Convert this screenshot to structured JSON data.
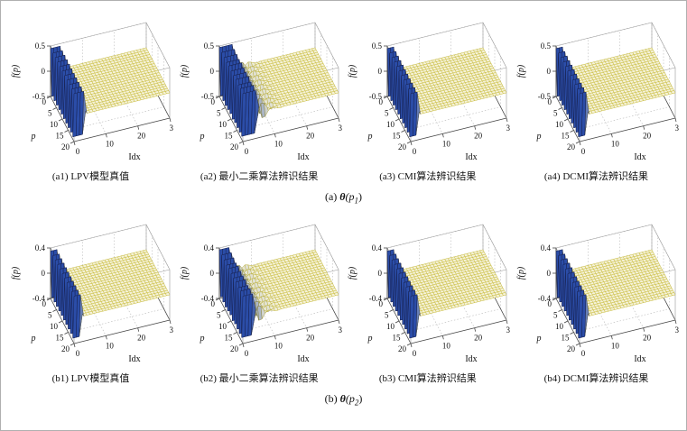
{
  "figure": {
    "background": "#ffffff",
    "row_captions": [
      {
        "prefix": "(a) ",
        "theta": "θ",
        "open": "(p",
        "sub": "1",
        "close": ")"
      },
      {
        "prefix": "(b) ",
        "theta": "θ",
        "open": "(p",
        "sub": "2",
        "close": ")"
      }
    ],
    "colors": {
      "surface_low": "#f5f2d8",
      "surface_edge_low": "#c9bc3c",
      "surface_high": "#2b4da8",
      "surface_edge_high": "#17214f",
      "grid": "#b9b9b9",
      "box": "#444444",
      "box_light": "#999999",
      "text": "#111111"
    }
  },
  "chart_data": [
    {
      "type": "surface3d",
      "caption": "(a1) LPV模型真值",
      "xlabel": "Idx",
      "ylabel": "p",
      "zlabel": "f(p)",
      "x_range": [
        0,
        30
      ],
      "y_range": [
        0,
        20
      ],
      "z_range": [
        -0.5,
        0.5
      ],
      "x_ticks": [
        0,
        10,
        20,
        30
      ],
      "y_ticks": [
        0,
        5,
        10,
        15,
        20
      ],
      "z_ticks": [
        0.5,
        0,
        -0.5
      ],
      "bar_idx_span": 3,
      "ripple_idx_span": 0,
      "bar_values_by_p": [
        0.45,
        -0.45,
        0.45,
        -0.45,
        0.45,
        -0.45,
        0.45,
        -0.45,
        0.45,
        -0.45,
        0.45,
        -0.45,
        0.45,
        -0.45,
        0.45,
        -0.45,
        0.45,
        -0.45,
        0.45,
        -0.45,
        0.45
      ]
    },
    {
      "type": "surface3d",
      "caption": "(a2) 最小二乘算法辨识结果",
      "xlabel": "Idx",
      "ylabel": "p",
      "zlabel": "f(p)",
      "x_range": [
        0,
        30
      ],
      "y_range": [
        0,
        20
      ],
      "z_range": [
        -0.5,
        0.5
      ],
      "x_ticks": [
        0,
        10,
        20,
        30
      ],
      "y_ticks": [
        0,
        5,
        10,
        15,
        20
      ],
      "z_ticks": [
        0.5,
        0,
        -0.5
      ],
      "bar_idx_span": 4,
      "ripple_idx_span": 8,
      "bar_values_by_p": [
        0.47,
        -0.44,
        0.46,
        -0.45,
        0.45,
        -0.46,
        0.44,
        -0.45,
        0.46,
        -0.44,
        0.45,
        -0.46,
        0.45,
        -0.44,
        0.46,
        -0.45,
        0.44,
        -0.45,
        0.46,
        -0.44,
        0.45
      ]
    },
    {
      "type": "surface3d",
      "caption": "(a3) CMI算法辨识结果",
      "xlabel": "Idx",
      "ylabel": "p",
      "zlabel": "f(p)",
      "x_range": [
        0,
        30
      ],
      "y_range": [
        0,
        20
      ],
      "z_range": [
        -0.5,
        0.5
      ],
      "x_ticks": [
        0,
        10,
        20,
        30
      ],
      "y_ticks": [
        0,
        5,
        10,
        15,
        20
      ],
      "z_ticks": [
        0.5,
        0,
        -0.5
      ],
      "bar_idx_span": 2,
      "ripple_idx_span": 0,
      "bar_values_by_p": [
        0.45,
        -0.45,
        0.45,
        -0.45,
        0.45,
        -0.45,
        0.45,
        -0.45,
        0.45,
        -0.45,
        0.45,
        -0.45,
        0.45,
        -0.45,
        0.45,
        -0.45,
        0.45,
        -0.45,
        0.45,
        -0.45,
        0.45
      ]
    },
    {
      "type": "surface3d",
      "caption": "(a4) DCMI算法辨识结果",
      "xlabel": "Idx",
      "ylabel": "p",
      "zlabel": "f(p)",
      "x_range": [
        0,
        30
      ],
      "y_range": [
        0,
        20
      ],
      "z_range": [
        -0.5,
        0.5
      ],
      "x_ticks": [
        0,
        10,
        20,
        30
      ],
      "y_ticks": [
        0,
        5,
        10,
        15,
        20
      ],
      "z_ticks": [
        0.5,
        0,
        -0.5
      ],
      "bar_idx_span": 2,
      "ripple_idx_span": 0,
      "bar_values_by_p": [
        0.45,
        -0.45,
        0.45,
        -0.45,
        0.45,
        -0.45,
        0.45,
        -0.45,
        0.45,
        -0.45,
        0.45,
        -0.45,
        0.45,
        -0.45,
        0.45,
        -0.45,
        0.45,
        -0.45,
        0.45,
        -0.45,
        0.45
      ]
    },
    {
      "type": "surface3d",
      "caption": "(b1) LPV模型真值",
      "xlabel": "Idx",
      "ylabel": "p",
      "zlabel": "f(p)",
      "x_range": [
        0,
        30
      ],
      "y_range": [
        0,
        20
      ],
      "z_range": [
        -0.4,
        0.4
      ],
      "x_ticks": [
        0,
        10,
        20,
        30
      ],
      "y_ticks": [
        0,
        5,
        10,
        15,
        20
      ],
      "z_ticks": [
        0.4,
        0,
        -0.4
      ],
      "bar_idx_span": 2,
      "ripple_idx_span": 0,
      "bar_values_by_p": [
        0.35,
        -0.35,
        0.35,
        -0.35,
        0.35,
        -0.35,
        0.35,
        -0.35,
        0.35,
        -0.35,
        0.35,
        -0.35,
        0.35,
        -0.35,
        0.35,
        -0.35,
        0.35,
        -0.35,
        0.35,
        -0.35,
        0.35
      ]
    },
    {
      "type": "surface3d",
      "caption": "(b2) 最小二乘算法辨识结果",
      "xlabel": "Idx",
      "ylabel": "p",
      "zlabel": "f(p)",
      "x_range": [
        0,
        30
      ],
      "y_range": [
        0,
        20
      ],
      "z_range": [
        -0.4,
        0.4
      ],
      "x_ticks": [
        0,
        10,
        20,
        30
      ],
      "y_ticks": [
        0,
        5,
        10,
        15,
        20
      ],
      "z_ticks": [
        0.4,
        0,
        -0.4
      ],
      "bar_idx_span": 3,
      "ripple_idx_span": 8,
      "bar_values_by_p": [
        0.37,
        -0.34,
        0.36,
        -0.35,
        0.35,
        -0.36,
        0.34,
        -0.35,
        0.36,
        -0.34,
        0.35,
        -0.36,
        0.35,
        -0.34,
        0.36,
        -0.35,
        0.34,
        -0.35,
        0.36,
        -0.34,
        0.35
      ]
    },
    {
      "type": "surface3d",
      "caption": "(b3) CMI算法辨识结果",
      "xlabel": "Idx",
      "ylabel": "p",
      "zlabel": "f(p)",
      "x_range": [
        0,
        30
      ],
      "y_range": [
        0,
        20
      ],
      "z_range": [
        -0.4,
        0.4
      ],
      "x_ticks": [
        0,
        10,
        20,
        30
      ],
      "y_ticks": [
        0,
        5,
        10,
        15,
        20
      ],
      "z_ticks": [
        0.4,
        0,
        -0.4
      ],
      "bar_idx_span": 2,
      "ripple_idx_span": 0,
      "bar_values_by_p": [
        0.35,
        -0.35,
        0.35,
        -0.35,
        0.35,
        -0.35,
        0.35,
        -0.35,
        0.35,
        -0.35,
        0.35,
        -0.35,
        0.35,
        -0.35,
        0.35,
        -0.35,
        0.35,
        -0.35,
        0.35,
        -0.35,
        0.35
      ]
    },
    {
      "type": "surface3d",
      "caption": "(b4) DCMI算法辨识结果",
      "xlabel": "Idx",
      "ylabel": "p",
      "zlabel": "f(p)",
      "x_range": [
        0,
        30
      ],
      "y_range": [
        0,
        20
      ],
      "z_range": [
        -0.4,
        0.4
      ],
      "x_ticks": [
        0,
        10,
        20,
        30
      ],
      "y_ticks": [
        0,
        5,
        10,
        15,
        20
      ],
      "z_ticks": [
        0.4,
        0,
        -0.4
      ],
      "bar_idx_span": 2,
      "ripple_idx_span": 0,
      "bar_values_by_p": [
        0.35,
        -0.35,
        0.35,
        -0.35,
        0.35,
        -0.35,
        0.35,
        -0.35,
        0.35,
        -0.35,
        0.35,
        -0.35,
        0.35,
        -0.35,
        0.35,
        -0.35,
        0.35,
        -0.35,
        0.35,
        -0.35,
        0.35
      ]
    }
  ]
}
